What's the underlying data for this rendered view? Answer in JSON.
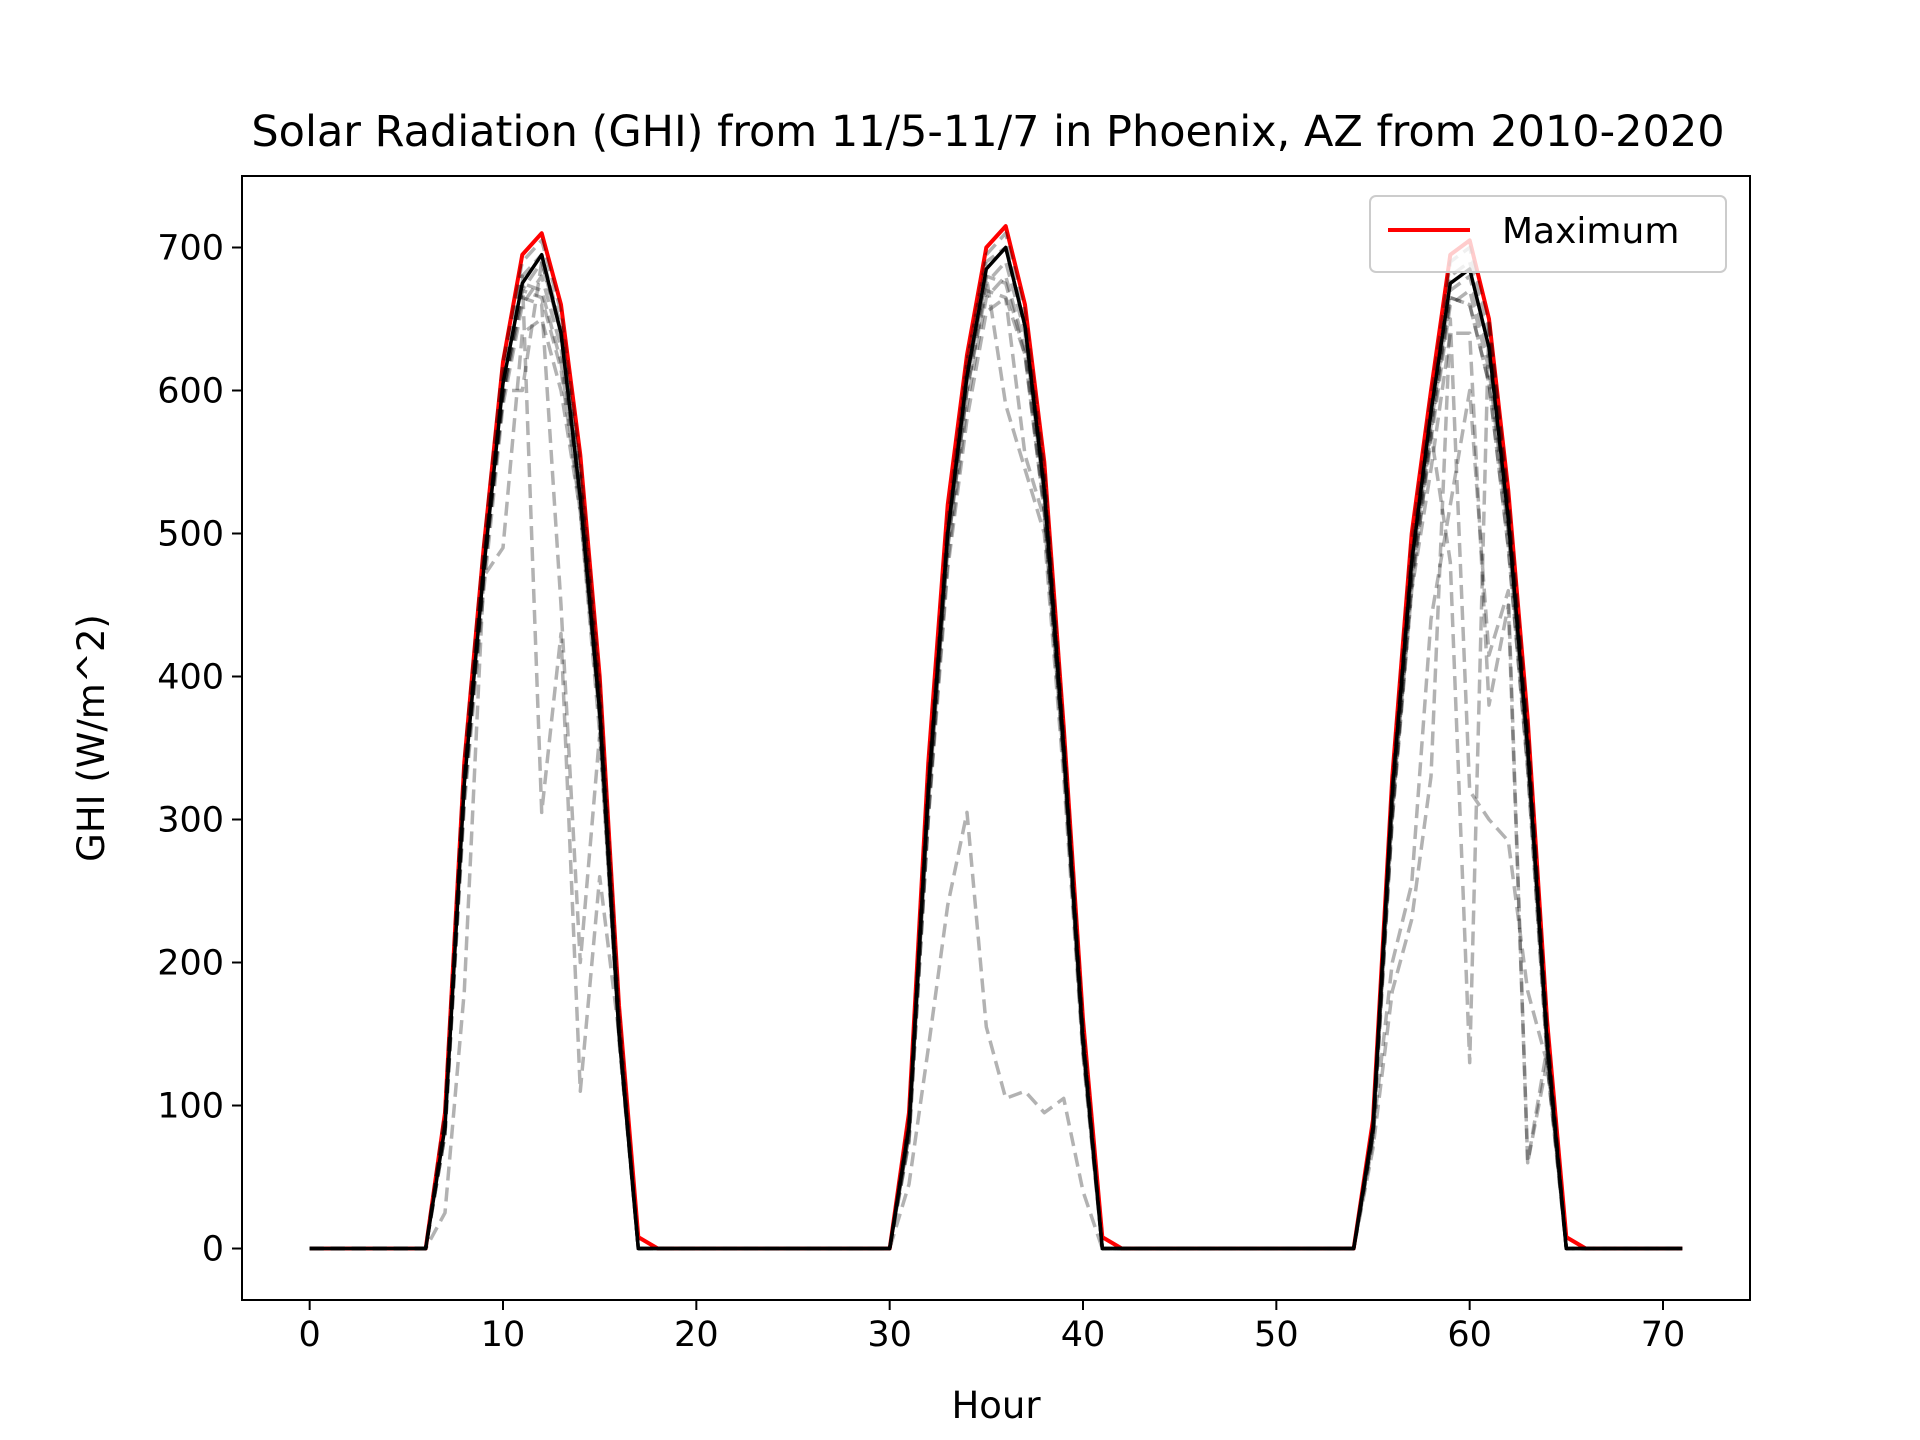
{
  "chart_data": {
    "type": "line",
    "title": "Solar Radiation (GHI) from 11/5-11/7 in Phoenix, AZ from 2010-2020",
    "xlabel": "Hour",
    "ylabel": "GHI (W/m^2)",
    "xlim": [
      -3.5,
      74.5
    ],
    "ylim": [
      -36,
      750
    ],
    "x_ticks": [
      0,
      10,
      20,
      30,
      40,
      50,
      60,
      70
    ],
    "y_ticks": [
      0,
      100,
      200,
      300,
      400,
      500,
      600,
      700
    ],
    "grid": false,
    "legend": {
      "position": "upper right",
      "entries": [
        "Maximum"
      ]
    },
    "colors": {
      "maximum": "#ff0000",
      "years": "#000000",
      "mean": "#000000"
    },
    "x": [
      0,
      1,
      2,
      3,
      4,
      5,
      6,
      7,
      8,
      9,
      10,
      11,
      12,
      13,
      14,
      15,
      16,
      17,
      18,
      19,
      20,
      21,
      22,
      23,
      24,
      25,
      26,
      27,
      28,
      29,
      30,
      31,
      32,
      33,
      34,
      35,
      36,
      37,
      38,
      39,
      40,
      41,
      42,
      43,
      44,
      45,
      46,
      47,
      48,
      49,
      50,
      51,
      52,
      53,
      54,
      55,
      56,
      57,
      58,
      59,
      60,
      61,
      62,
      63,
      64,
      65,
      66,
      67,
      68,
      69,
      70,
      71
    ],
    "series": [
      {
        "name": "Maximum",
        "style": "solid",
        "values": [
          0,
          0,
          0,
          0,
          0,
          0,
          0,
          95,
          340,
          490,
          620,
          695,
          710,
          660,
          555,
          400,
          170,
          8,
          0,
          0,
          0,
          0,
          0,
          0,
          0,
          0,
          0,
          0,
          0,
          0,
          0,
          95,
          340,
          520,
          625,
          700,
          715,
          660,
          550,
          365,
          160,
          8,
          0,
          0,
          0,
          0,
          0,
          0,
          0,
          0,
          0,
          0,
          0,
          0,
          0,
          90,
          330,
          500,
          600,
          695,
          705,
          650,
          530,
          370,
          160,
          8,
          0,
          0,
          0,
          0,
          0,
          0
        ]
      },
      {
        "style": "dashed",
        "values": [
          0,
          0,
          0,
          0,
          0,
          0,
          0,
          95,
          340,
          490,
          620,
          690,
          705,
          655,
          550,
          395,
          165,
          0,
          0,
          0,
          0,
          0,
          0,
          0,
          0,
          0,
          0,
          0,
          0,
          0,
          0,
          90,
          330,
          510,
          620,
          695,
          710,
          655,
          545,
          360,
          155,
          0,
          0,
          0,
          0,
          0,
          0,
          0,
          0,
          0,
          0,
          0,
          0,
          0,
          0,
          85,
          325,
          495,
          595,
          690,
          700,
          645,
          525,
          365,
          155,
          0,
          0,
          0,
          0,
          0,
          0,
          0
        ]
      },
      {
        "style": "dashed",
        "values": [
          0,
          0,
          0,
          0,
          0,
          0,
          0,
          90,
          330,
          480,
          610,
          680,
          695,
          645,
          540,
          385,
          160,
          0,
          0,
          0,
          0,
          0,
          0,
          0,
          0,
          0,
          0,
          0,
          0,
          0,
          0,
          85,
          320,
          500,
          610,
          685,
          700,
          645,
          535,
          350,
          150,
          0,
          0,
          0,
          0,
          0,
          0,
          0,
          0,
          0,
          0,
          0,
          0,
          0,
          0,
          80,
          315,
          485,
          585,
          680,
          690,
          635,
          515,
          355,
          150,
          0,
          0,
          0,
          0,
          0,
          0,
          0
        ]
      },
      {
        "style": "dashed",
        "values": [
          0,
          0,
          0,
          0,
          0,
          0,
          0,
          85,
          320,
          470,
          600,
          670,
          690,
          640,
          535,
          380,
          155,
          0,
          0,
          0,
          0,
          0,
          0,
          0,
          0,
          0,
          0,
          0,
          0,
          0,
          0,
          80,
          310,
          490,
          600,
          675,
          690,
          640,
          525,
          345,
          145,
          0,
          0,
          0,
          0,
          0,
          0,
          0,
          0,
          0,
          0,
          0,
          0,
          0,
          0,
          80,
          310,
          475,
          575,
          670,
          680,
          625,
          505,
          345,
          145,
          0,
          0,
          0,
          0,
          0,
          0,
          0
        ]
      },
      {
        "style": "dashed",
        "values": [
          0,
          0,
          0,
          0,
          0,
          0,
          0,
          80,
          310,
          460,
          590,
          660,
          680,
          630,
          525,
          370,
          150,
          0,
          0,
          0,
          0,
          0,
          0,
          0,
          0,
          0,
          0,
          0,
          0,
          0,
          0,
          75,
          305,
          480,
          590,
          665,
          680,
          630,
          520,
          340,
          140,
          0,
          0,
          0,
          0,
          0,
          0,
          0,
          0,
          0,
          0,
          0,
          0,
          0,
          0,
          75,
          300,
          465,
          565,
          660,
          670,
          615,
          500,
          340,
          140,
          0,
          0,
          0,
          0,
          0,
          0,
          0
        ]
      },
      {
        "style": "dashed",
        "values": [
          0,
          0,
          0,
          0,
          0,
          0,
          0,
          85,
          325,
          475,
          605,
          675,
          670,
          620,
          520,
          375,
          150,
          0,
          0,
          0,
          0,
          0,
          0,
          0,
          0,
          0,
          0,
          0,
          0,
          0,
          0,
          80,
          315,
          495,
          605,
          680,
          675,
          625,
          515,
          345,
          140,
          0,
          0,
          0,
          0,
          0,
          0,
          0,
          0,
          0,
          0,
          0,
          0,
          0,
          0,
          80,
          305,
          470,
          580,
          665,
          660,
          605,
          490,
          335,
          135,
          0,
          0,
          0,
          0,
          0,
          0,
          0
        ]
      },
      {
        "style": "dashed",
        "values": [
          0,
          0,
          0,
          0,
          0,
          0,
          0,
          80,
          315,
          470,
          600,
          670,
          665,
          615,
          515,
          370,
          145,
          0,
          0,
          0,
          0,
          0,
          0,
          0,
          0,
          0,
          0,
          0,
          0,
          0,
          0,
          75,
          300,
          475,
          580,
          655,
          665,
          625,
          515,
          345,
          140,
          0,
          0,
          0,
          0,
          0,
          0,
          0,
          0,
          0,
          0,
          0,
          0,
          0,
          0,
          80,
          305,
          470,
          570,
          665,
          660,
          605,
          490,
          335,
          135,
          0,
          0,
          0,
          0,
          0,
          0,
          0
        ]
      },
      {
        "style": "dashed",
        "values": [
          0,
          0,
          0,
          0,
          0,
          0,
          0,
          25,
          180,
          470,
          490,
          640,
          650,
          600,
          515,
          360,
          150,
          0,
          0,
          0,
          0,
          0,
          0,
          0,
          0,
          0,
          0,
          0,
          0,
          0,
          0,
          80,
          315,
          490,
          600,
          670,
          665,
          555,
          510,
          340,
          140,
          0,
          0,
          0,
          0,
          0,
          0,
          0,
          0,
          0,
          0,
          0,
          0,
          0,
          0,
          80,
          310,
          460,
          545,
          640,
          640,
          380,
          450,
          60,
          130,
          0,
          0,
          0,
          0,
          0,
          0,
          0
        ]
      },
      {
        "style": "dashed",
        "values": [
          0,
          0,
          0,
          0,
          0,
          0,
          0,
          85,
          320,
          470,
          595,
          680,
          305,
          430,
          110,
          260,
          150,
          0,
          0,
          0,
          0,
          0,
          0,
          0,
          0,
          0,
          0,
          0,
          0,
          0,
          0,
          90,
          325,
          500,
          610,
          680,
          590,
          545,
          500,
          330,
          135,
          0,
          0,
          0,
          0,
          0,
          0,
          0,
          0,
          0,
          0,
          0,
          0,
          0,
          0,
          80,
          300,
          460,
          570,
          480,
          130,
          650,
          520,
          360,
          150,
          0,
          0,
          0,
          0,
          0,
          0,
          0
        ]
      },
      {
        "style": "dashed",
        "values": [
          0,
          0,
          0,
          0,
          0,
          0,
          0,
          80,
          320,
          470,
          595,
          665,
          660,
          450,
          200,
          360,
          150,
          0,
          0,
          0,
          0,
          0,
          0,
          0,
          0,
          0,
          0,
          0,
          0,
          0,
          0,
          45,
          140,
          240,
          305,
          155,
          105,
          110,
          95,
          105,
          40,
          0,
          0,
          0,
          0,
          0,
          0,
          0,
          0,
          0,
          0,
          0,
          0,
          0,
          0,
          70,
          180,
          230,
          330,
          650,
          320,
          300,
          285,
          180,
          130,
          0,
          0,
          0,
          0,
          0,
          0,
          0
        ]
      },
      {
        "style": "dashed",
        "values": [
          0,
          0,
          0,
          0,
          0,
          0,
          0,
          90,
          330,
          480,
          600,
          600,
          690,
          640,
          540,
          390,
          160,
          0,
          0,
          0,
          0,
          0,
          0,
          0,
          0,
          0,
          0,
          0,
          0,
          0,
          0,
          80,
          300,
          500,
          620,
          690,
          700,
          645,
          540,
          355,
          150,
          0,
          0,
          0,
          0,
          0,
          0,
          0,
          0,
          0,
          0,
          0,
          0,
          0,
          0,
          80,
          200,
          255,
          440,
          520,
          600,
          415,
          460,
          60,
          140,
          0,
          0,
          0,
          0,
          0,
          0,
          0
        ]
      },
      {
        "style": "solid",
        "values": [
          0,
          0,
          0,
          0,
          0,
          0,
          0,
          85,
          325,
          475,
          605,
          675,
          695,
          640,
          525,
          375,
          150,
          0,
          0,
          0,
          0,
          0,
          0,
          0,
          0,
          0,
          0,
          0,
          0,
          0,
          0,
          85,
          320,
          500,
          610,
          685,
          700,
          645,
          530,
          350,
          145,
          0,
          0,
          0,
          0,
          0,
          0,
          0,
          0,
          0,
          0,
          0,
          0,
          0,
          0,
          85,
          320,
          480,
          585,
          675,
          685,
          630,
          510,
          350,
          145,
          0,
          0,
          0,
          0,
          0,
          0,
          0
        ]
      }
    ]
  }
}
